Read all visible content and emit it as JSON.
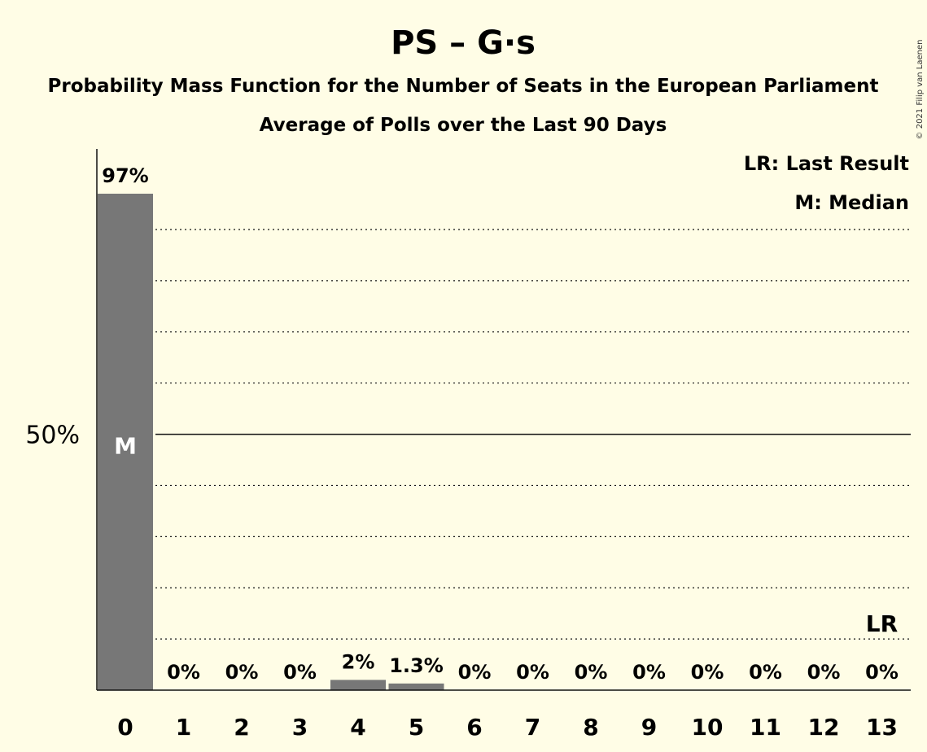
{
  "chart_data": {
    "type": "bar",
    "title": "PS – G·s",
    "subtitle": "Probability Mass Function for the Number of Seats in the European Parliament",
    "subtitle2": "Average of Polls over the Last 90 Days",
    "categories": [
      "0",
      "1",
      "2",
      "3",
      "4",
      "5",
      "6",
      "7",
      "8",
      "9",
      "10",
      "11",
      "12",
      "13"
    ],
    "values": [
      97,
      0,
      0,
      0,
      2,
      1.3,
      0,
      0,
      0,
      0,
      0,
      0,
      0,
      0
    ],
    "value_labels": [
      "97%",
      "0%",
      "0%",
      "0%",
      "2%",
      "1.3%",
      "0%",
      "0%",
      "0%",
      "0%",
      "0%",
      "0%",
      "0%",
      "0%"
    ],
    "ylim": [
      0,
      100
    ],
    "ytick_label": "50%",
    "ytick_value": 50,
    "grid_values": [
      10,
      20,
      30,
      40,
      60,
      70,
      80,
      90
    ],
    "median_index": 0,
    "median_marker": "M",
    "last_result_index": 13,
    "last_result_marker": "LR",
    "legend": [
      "LR: Last Result",
      "M: Median"
    ],
    "legend_position": "top-right",
    "bar_color": "#777777",
    "copyright": "© 2021 Filip van Laenen"
  }
}
